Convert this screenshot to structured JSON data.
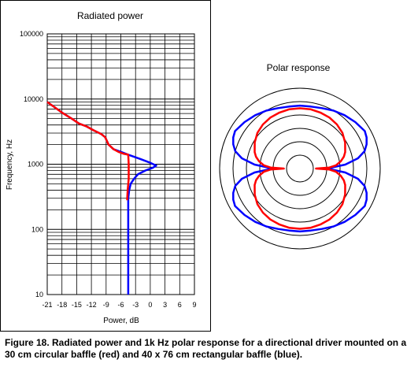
{
  "caption": "Figure 18. Radiated power and 1k Hz polar response for a directional driver mounted on a 30 cm circular baffle (red) and 40 x 76 cm rectangular baffle (blue).",
  "colors": {
    "red": "#ff0000",
    "blue": "#0000ff",
    "grid": "#000000"
  },
  "chart_data": [
    {
      "type": "line",
      "title": "Radiated power",
      "xlabel": "Power, dB",
      "ylabel": "Frequency, Hz",
      "xlim": [
        -21,
        9
      ],
      "ylim": [
        10,
        100000
      ],
      "yscale": "log",
      "grid": true,
      "x_ticks": [
        "-21",
        "-18",
        "-15",
        "-12",
        "-9",
        "-6",
        "-3",
        "0",
        "3",
        "6",
        "9"
      ],
      "y_ticks": [
        "10",
        "100",
        "1000",
        "10000",
        "100000"
      ],
      "series": [
        {
          "color": "blue",
          "points": [
            [
              -21,
              9000
            ],
            [
              -19.5,
              7500
            ],
            [
              -18,
              6200
            ],
            [
              -16,
              5000
            ],
            [
              -14.5,
              4200
            ],
            [
              -13,
              3800
            ],
            [
              -11.5,
              3300
            ],
            [
              -10,
              2900
            ],
            [
              -9.2,
              2600
            ],
            [
              -8.5,
              2000
            ],
            [
              -7.5,
              1700
            ],
            [
              -6,
              1550
            ],
            [
              -4.5,
              1400
            ],
            [
              -2,
              1200
            ],
            [
              0,
              1050
            ],
            [
              1.2,
              950
            ],
            [
              0.5,
              880
            ],
            [
              -1,
              800
            ],
            [
              -2.5,
              700
            ],
            [
              -3.3,
              600
            ],
            [
              -4,
              500
            ],
            [
              -4.3,
              400
            ],
            [
              -4.5,
              300
            ],
            [
              -4.5,
              100
            ],
            [
              -4.5,
              10
            ]
          ]
        },
        {
          "color": "red",
          "points": [
            [
              -21,
              9000
            ],
            [
              -19.5,
              7500
            ],
            [
              -18,
              6200
            ],
            [
              -16,
              5000
            ],
            [
              -14.5,
              4200
            ],
            [
              -13,
              3800
            ],
            [
              -11.5,
              3300
            ],
            [
              -10,
              2900
            ],
            [
              -9.2,
              2600
            ],
            [
              -8.5,
              2000
            ],
            [
              -7.5,
              1700
            ],
            [
              -6.5,
              1550
            ],
            [
              -5.5,
              1450
            ],
            [
              -4.5,
              1400
            ],
            [
              -4.4,
              1000
            ],
            [
              -4.4,
              600
            ],
            [
              -4.6,
              400
            ],
            [
              -4.7,
              300
            ],
            [
              -4.7,
              280
            ]
          ]
        }
      ]
    },
    {
      "type": "polar",
      "title": "Polar response",
      "rlim": [
        0,
        6
      ],
      "rings": 6,
      "series": [
        {
          "color": "blue",
          "shape": "rectangular baffle",
          "points_deg_r": [
            [
              0,
              4.7
            ],
            [
              10,
              4.7
            ],
            [
              20,
              4.8
            ],
            [
              30,
              5.0
            ],
            [
              40,
              5.2
            ],
            [
              50,
              5.4
            ],
            [
              60,
              5.6
            ],
            [
              65,
              5.5
            ],
            [
              70,
              5.3
            ],
            [
              75,
              5.0
            ],
            [
              80,
              4.4
            ],
            [
              85,
              3.4
            ],
            [
              88,
              2.4
            ],
            [
              90,
              2.2
            ]
          ]
        },
        {
          "color": "red",
          "shape": "circular baffle",
          "points_deg_r": [
            [
              0,
              4.5
            ],
            [
              10,
              4.5
            ],
            [
              20,
              4.45
            ],
            [
              30,
              4.4
            ],
            [
              40,
              4.3
            ],
            [
              50,
              4.15
            ],
            [
              60,
              3.9
            ],
            [
              70,
              3.6
            ],
            [
              75,
              3.4
            ],
            [
              80,
              3.1
            ],
            [
              85,
              2.7
            ],
            [
              88,
              2.2
            ],
            [
              90,
              1.2
            ]
          ]
        }
      ]
    }
  ]
}
